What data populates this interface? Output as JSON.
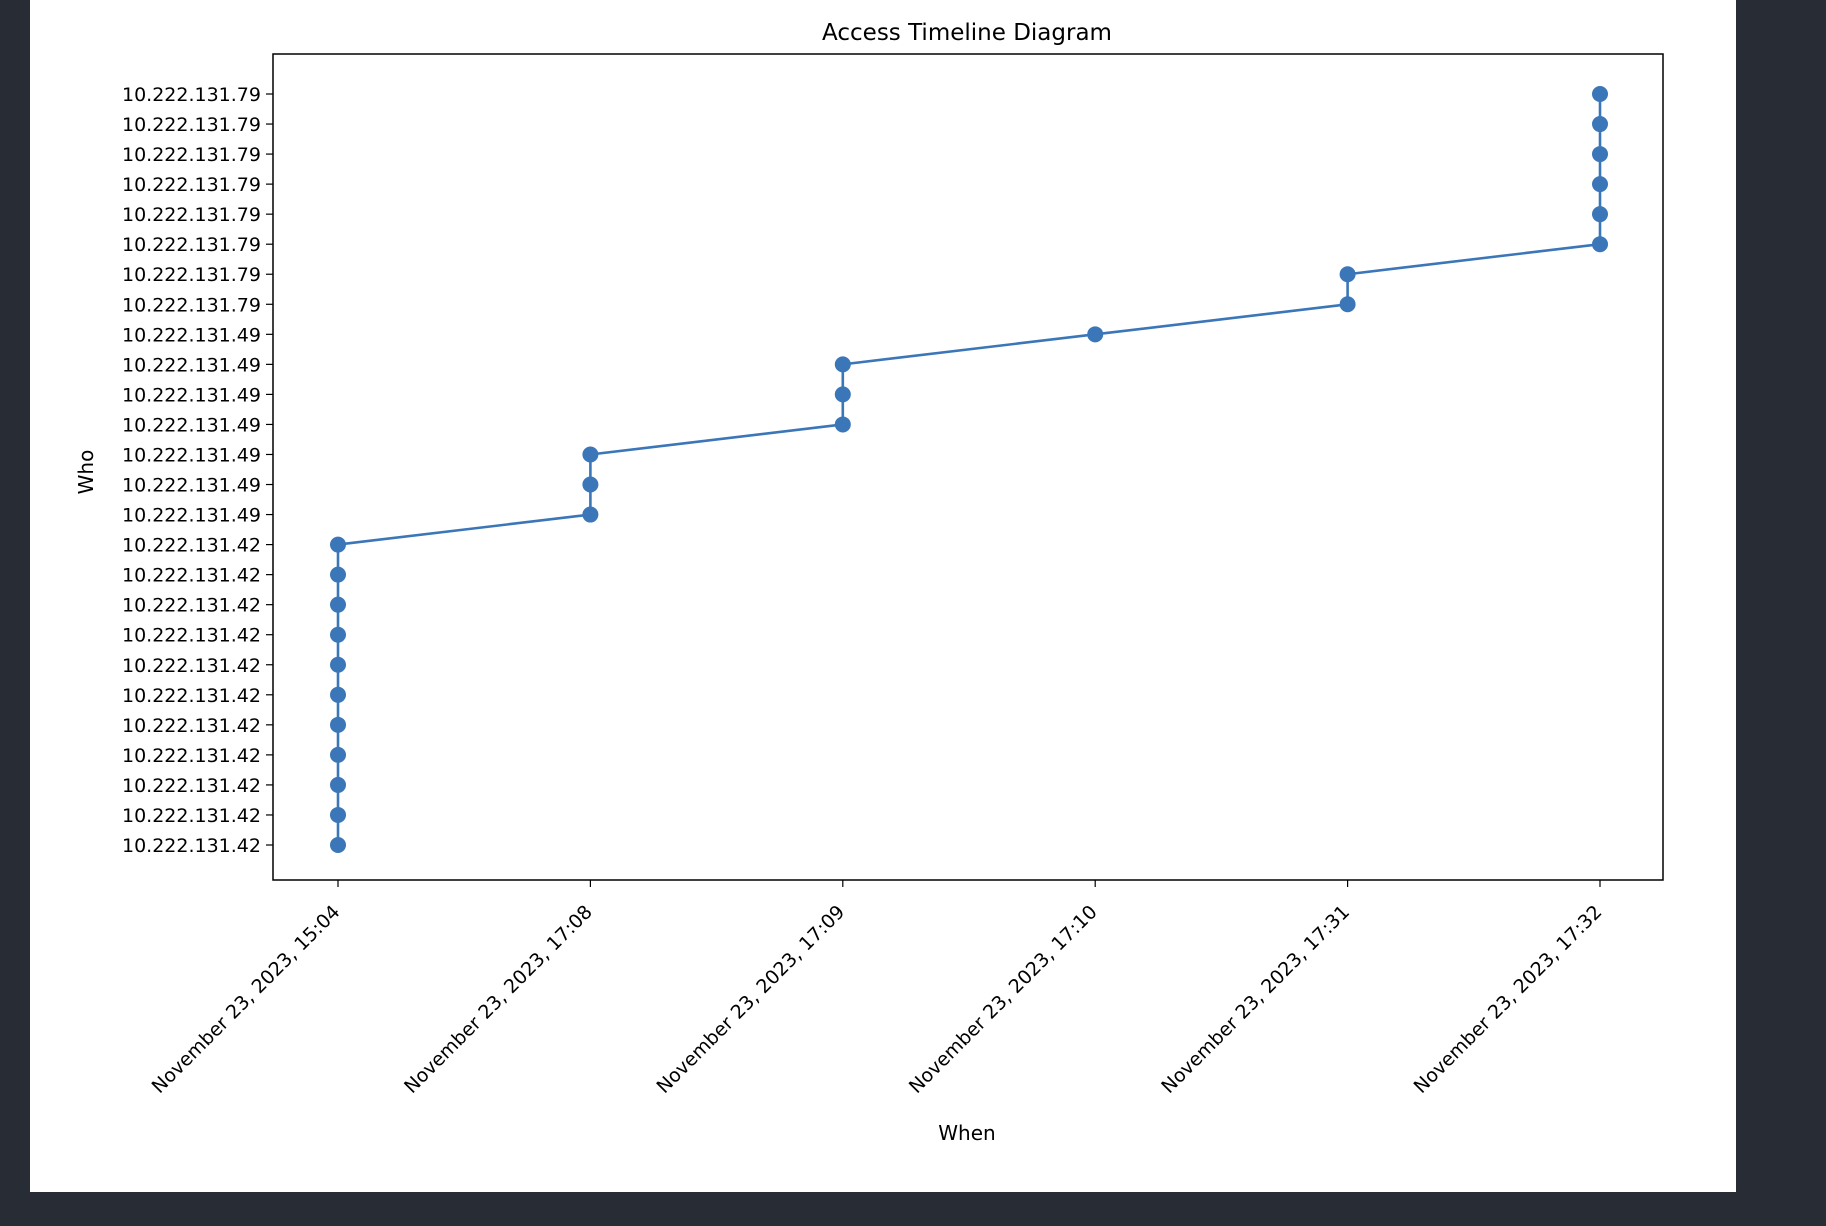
{
  "colors": {
    "page_background": "#282c34",
    "figure_background": "#ffffff",
    "series": "#3a76b8",
    "axis": "#000000"
  },
  "chart_data": {
    "type": "line",
    "title": "Access Timeline Diagram",
    "xlabel": "When",
    "ylabel": "Who",
    "grid": false,
    "legend": "none",
    "marker": "circle",
    "x_tick_labels": [
      "November 23, 2023, 15:04",
      "November 23, 2023, 17:08",
      "November 23, 2023, 17:09",
      "November 23, 2023, 17:10",
      "November 23, 2023, 17:31",
      "November 23, 2023, 17:32"
    ],
    "y_tick_labels": [
      "10.222.131.42",
      "10.222.131.42",
      "10.222.131.42",
      "10.222.131.42",
      "10.222.131.42",
      "10.222.131.42",
      "10.222.131.42",
      "10.222.131.42",
      "10.222.131.42",
      "10.222.131.42",
      "10.222.131.42",
      "10.222.131.49",
      "10.222.131.49",
      "10.222.131.49",
      "10.222.131.49",
      "10.222.131.49",
      "10.222.131.49",
      "10.222.131.49",
      "10.222.131.79",
      "10.222.131.79",
      "10.222.131.79",
      "10.222.131.79",
      "10.222.131.79",
      "10.222.131.79",
      "10.222.131.79",
      "10.222.131.79"
    ],
    "points": [
      {
        "x": "November 23, 2023, 15:04",
        "y": 0
      },
      {
        "x": "November 23, 2023, 15:04",
        "y": 1
      },
      {
        "x": "November 23, 2023, 15:04",
        "y": 2
      },
      {
        "x": "November 23, 2023, 15:04",
        "y": 3
      },
      {
        "x": "November 23, 2023, 15:04",
        "y": 4
      },
      {
        "x": "November 23, 2023, 15:04",
        "y": 5
      },
      {
        "x": "November 23, 2023, 15:04",
        "y": 6
      },
      {
        "x": "November 23, 2023, 15:04",
        "y": 7
      },
      {
        "x": "November 23, 2023, 15:04",
        "y": 8
      },
      {
        "x": "November 23, 2023, 15:04",
        "y": 9
      },
      {
        "x": "November 23, 2023, 15:04",
        "y": 10
      },
      {
        "x": "November 23, 2023, 17:08",
        "y": 11
      },
      {
        "x": "November 23, 2023, 17:08",
        "y": 12
      },
      {
        "x": "November 23, 2023, 17:08",
        "y": 13
      },
      {
        "x": "November 23, 2023, 17:09",
        "y": 14
      },
      {
        "x": "November 23, 2023, 17:09",
        "y": 15
      },
      {
        "x": "November 23, 2023, 17:09",
        "y": 16
      },
      {
        "x": "November 23, 2023, 17:10",
        "y": 17
      },
      {
        "x": "November 23, 2023, 17:31",
        "y": 18
      },
      {
        "x": "November 23, 2023, 17:31",
        "y": 19
      },
      {
        "x": "November 23, 2023, 17:32",
        "y": 20
      },
      {
        "x": "November 23, 2023, 17:32",
        "y": 21
      },
      {
        "x": "November 23, 2023, 17:32",
        "y": 22
      },
      {
        "x": "November 23, 2023, 17:32",
        "y": 23
      },
      {
        "x": "November 23, 2023, 17:32",
        "y": 24
      },
      {
        "x": "November 23, 2023, 17:32",
        "y": 25
      }
    ]
  }
}
